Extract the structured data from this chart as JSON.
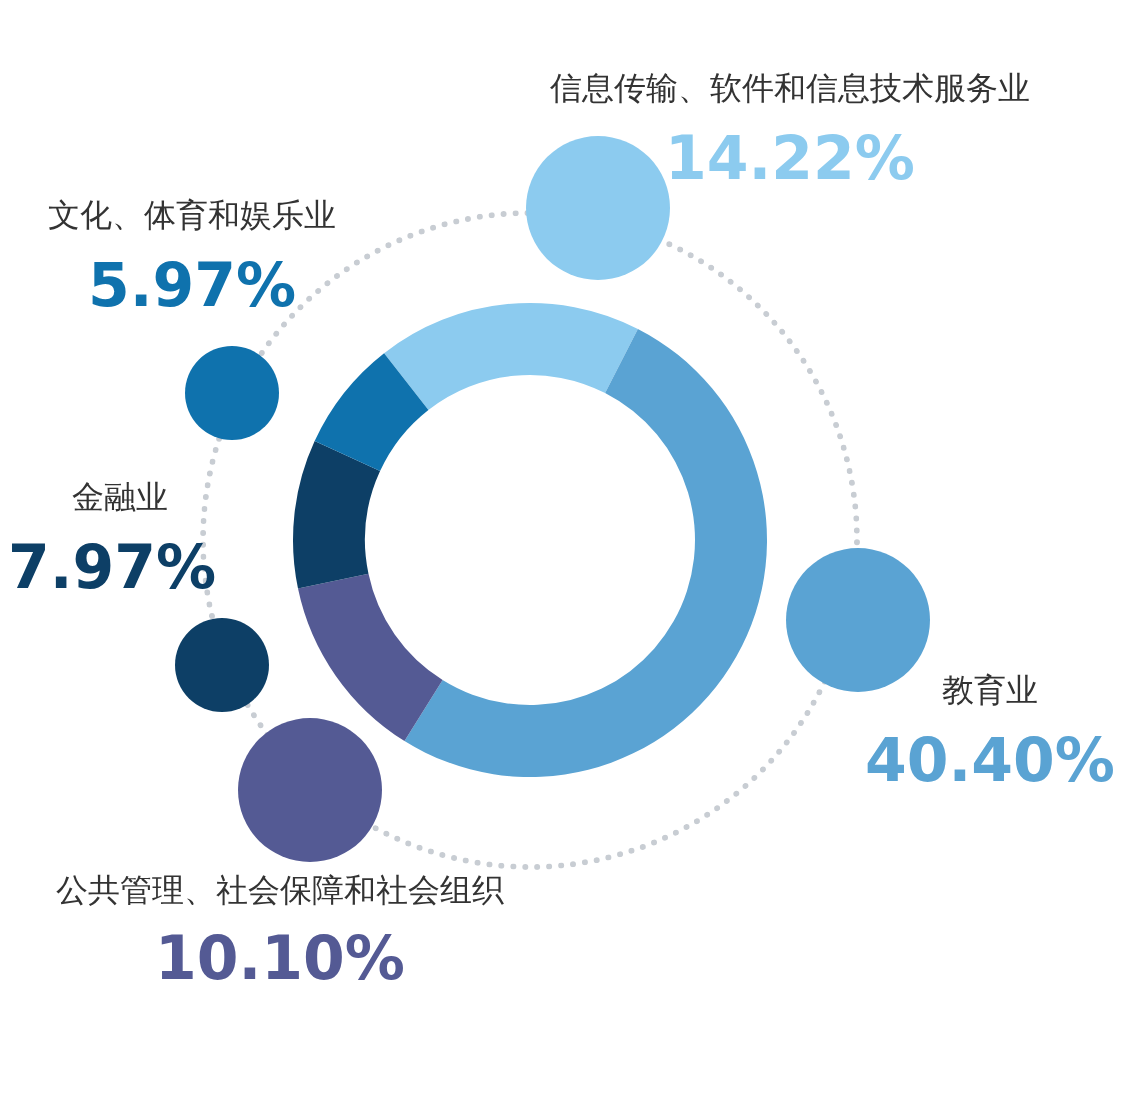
{
  "chart_data": {
    "type": "donut",
    "categories": [
      "信息传输、软件和信息技术服务业",
      "教育业",
      "公共管理、社会保障和社会组织",
      "金融业",
      "文化、体育和娱乐业"
    ],
    "values": [
      14.22,
      40.4,
      10.1,
      7.97,
      5.97
    ],
    "value_labels": [
      "14.22%",
      "40.40%",
      "10.10%",
      "7.97%",
      "5.97%"
    ],
    "colors": [
      "#8ccbef",
      "#5aa3d3",
      "#545a94",
      "#0d3f66",
      "#0f72ad"
    ],
    "legend": false
  }
}
